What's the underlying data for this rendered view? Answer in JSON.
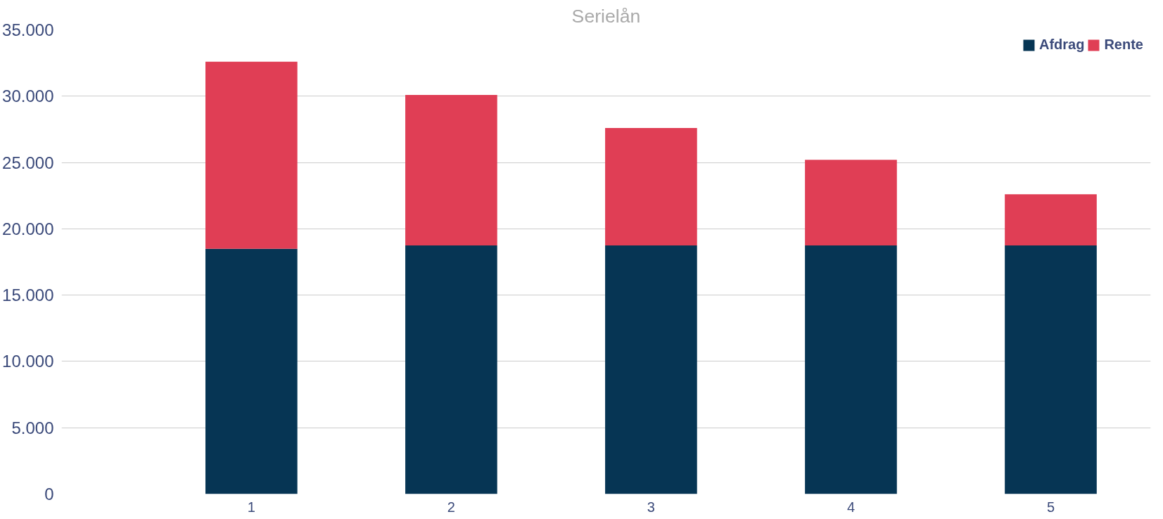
{
  "chart_data": {
    "type": "bar",
    "title": "Serielån",
    "categories": [
      "1",
      "2",
      "3",
      "4",
      "5"
    ],
    "stacked": true,
    "series": [
      {
        "name": "Afdrag",
        "color": "#063554",
        "values": [
          18500,
          18750,
          18750,
          18750,
          18750
        ]
      },
      {
        "name": "Rente",
        "color": "#e03e55",
        "values": [
          14100,
          11350,
          8850,
          6450,
          3850
        ]
      }
    ],
    "ylim": [
      0,
      35000
    ],
    "yticks": [
      0,
      {
        "value": 5000,
        "label": "5.000"
      },
      {
        "value": 10000,
        "label": "10.000"
      },
      {
        "value": 15000,
        "label": "15.000"
      },
      {
        "value": 20000,
        "label": "20.000"
      },
      {
        "value": 25000,
        "label": "25.000"
      },
      {
        "value": 30000,
        "label": "30.000"
      },
      {
        "value": 35000,
        "label": "35.000"
      }
    ],
    "grid": "y",
    "legend": "top right"
  }
}
